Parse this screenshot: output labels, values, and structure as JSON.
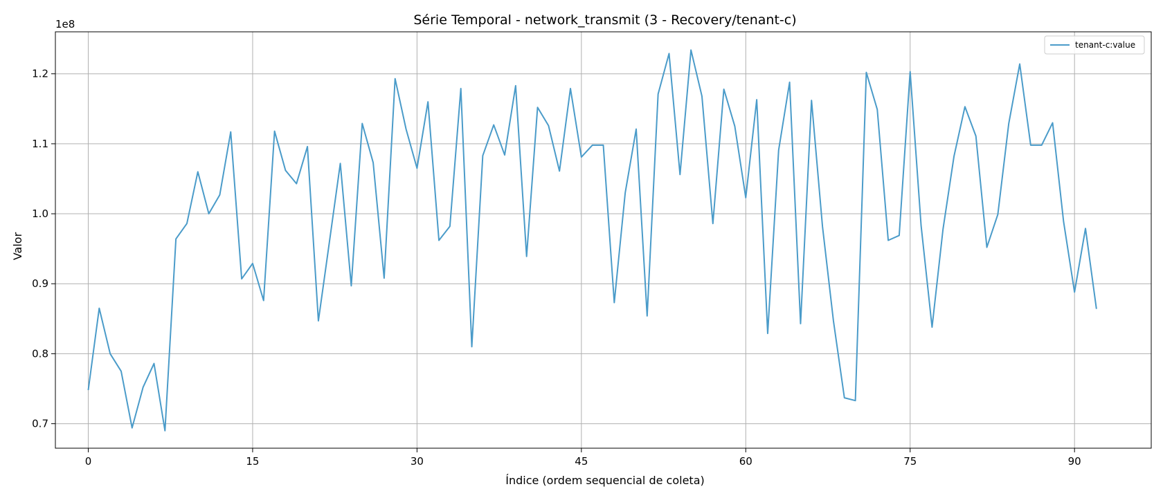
{
  "chart_data": {
    "type": "line",
    "title": "Série Temporal - network_transmit (3 - Recovery/tenant-c)",
    "xlabel": "Índice (ordem sequencial de coleta)",
    "ylabel": "Valor",
    "y_offset_label": "1e8",
    "y_scale": 100000000,
    "xlim": [
      -3,
      97
    ],
    "ylim": [
      0.665,
      1.26
    ],
    "x_ticks": [
      0,
      15,
      30,
      45,
      60,
      75,
      90
    ],
    "x_tick_labels": [
      "0",
      "15",
      "30",
      "45",
      "60",
      "75",
      "90"
    ],
    "y_ticks": [
      0.7,
      0.8,
      0.9,
      1.0,
      1.1,
      1.2
    ],
    "y_tick_labels": [
      "0.7",
      "0.8",
      "0.9",
      "1.0",
      "1.1",
      "1.2"
    ],
    "grid": true,
    "legend_position": "top-right",
    "series": [
      {
        "name": "tenant-c:value",
        "color": "#4a9bc9",
        "values": [
          0.748,
          0.865,
          0.8,
          0.775,
          0.694,
          0.752,
          0.786,
          0.69,
          0.964,
          0.986,
          1.06,
          1.0,
          1.027,
          1.117,
          0.907,
          0.929,
          0.876,
          1.118,
          1.062,
          1.043,
          1.096,
          0.847,
          0.959,
          1.072,
          0.897,
          1.129,
          1.073,
          0.908,
          1.193,
          1.121,
          1.065,
          1.16,
          0.962,
          0.982,
          1.179,
          0.81,
          1.083,
          1.127,
          1.084,
          1.183,
          0.939,
          1.152,
          1.126,
          1.061,
          1.179,
          1.081,
          1.098,
          1.098,
          0.873,
          1.03,
          1.121,
          0.854,
          1.171,
          1.229,
          1.056,
          1.234,
          1.168,
          0.986,
          1.178,
          1.125,
          1.023,
          1.163,
          0.829,
          1.091,
          1.188,
          0.843,
          1.162,
          0.982,
          0.847,
          0.737,
          0.733,
          1.202,
          1.149,
          0.962,
          0.969,
          1.203,
          0.983,
          0.838,
          0.978,
          1.082,
          1.153,
          1.111,
          0.952,
          0.999,
          1.129,
          1.214,
          1.098,
          1.098,
          1.13,
          0.989,
          0.888,
          0.979,
          0.864
        ]
      }
    ]
  }
}
